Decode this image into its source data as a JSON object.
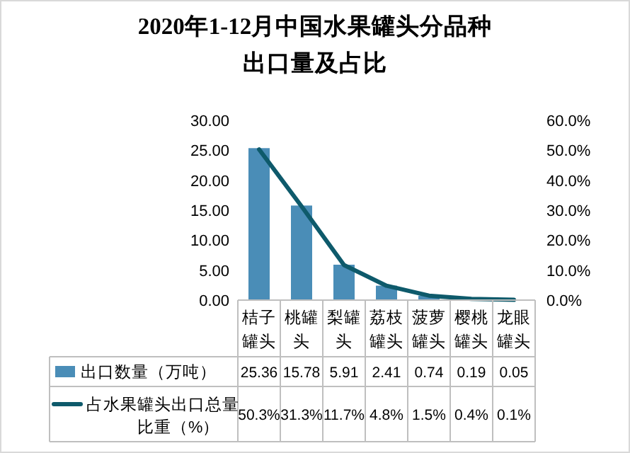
{
  "chart_data": {
    "type": "bar",
    "title": "2020年1-12月中国水果罐头分品种出口量及占比",
    "categories": [
      "桔子罐头",
      "桃罐头",
      "梨罐头",
      "荔枝罐头",
      "菠萝罐头",
      "樱桃罐头",
      "龙眼罐头"
    ],
    "series": [
      {
        "name": "出口数量（万吨）",
        "color": "#4a8db7",
        "values": [
          25.36,
          15.78,
          5.91,
          2.41,
          0.74,
          0.19,
          0.05
        ],
        "value_labels": [
          "25.36",
          "15.78",
          "5.91",
          "2.41",
          "0.74",
          "0.19",
          "0.05"
        ]
      },
      {
        "name": "占水果罐头出口总量比重（%）",
        "type": "line",
        "axis": "y2",
        "color": "#0e5a6b",
        "values": [
          50.3,
          31.3,
          11.7,
          4.8,
          1.5,
          0.4,
          0.1
        ],
        "value_labels": [
          "50.3%",
          "31.3%",
          "11.7%",
          "4.8%",
          "1.5%",
          "0.4%",
          "0.1%"
        ]
      }
    ],
    "ylim": [
      0,
      30
    ],
    "yticks": [
      {
        "value": 0,
        "label": "0.00"
      },
      {
        "value": 5,
        "label": "5.00"
      },
      {
        "value": 10,
        "label": "10.00"
      },
      {
        "value": 15,
        "label": "15.00"
      },
      {
        "value": 20,
        "label": "20.00"
      },
      {
        "value": 25,
        "label": "25.00"
      },
      {
        "value": 30,
        "label": "30.00"
      }
    ],
    "y2lim": [
      0,
      60
    ],
    "y2ticks": [
      {
        "value": 0,
        "label": "0.0%"
      },
      {
        "value": 10,
        "label": "10.0%"
      },
      {
        "value": 20,
        "label": "20.0%"
      },
      {
        "value": 30,
        "label": "30.0%"
      },
      {
        "value": 40,
        "label": "40.0%"
      },
      {
        "value": 50,
        "label": "50.0%"
      },
      {
        "value": 60,
        "label": "60.0%"
      }
    ],
    "legend": "bottom",
    "grid": false,
    "marker": "none",
    "line_style": "solid"
  }
}
